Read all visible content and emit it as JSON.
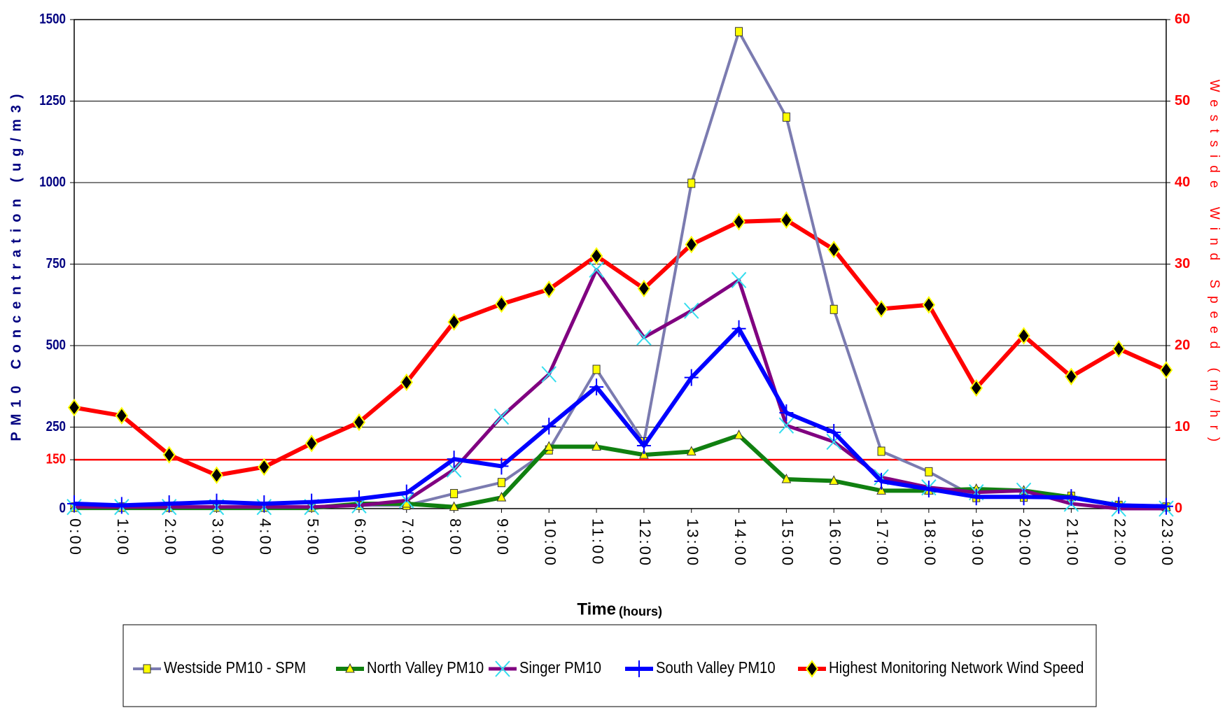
{
  "chart_data": {
    "type": "line",
    "y_label": "PM10 Concentration (ug/m3)",
    "y2_label": "Westside Wind Speed (m/hr)",
    "x_label": "Time",
    "x_label_unit": "(hours)",
    "categories": [
      "0:00",
      "1:00",
      "2:00",
      "3:00",
      "4:00",
      "5:00",
      "6:00",
      "7:00",
      "8:00",
      "9:00",
      "10:00",
      "11:00",
      "12:00",
      "13:00",
      "14:00",
      "15:00",
      "16:00",
      "17:00",
      "18:00",
      "19:00",
      "20:00",
      "21:00",
      "22:00",
      "23:00"
    ],
    "ylim": [
      0,
      1500
    ],
    "yticks": [
      0,
      150,
      250,
      500,
      750,
      1000,
      1250,
      1500
    ],
    "y2lim": [
      0,
      60
    ],
    "y2ticks": [
      0,
      10,
      20,
      30,
      40,
      50,
      60
    ],
    "threshold": 150,
    "threshold_color": "#ff0000",
    "grid": true,
    "series": [
      {
        "name": "Westside  PM10 - SPM",
        "color": "#7b7bb0",
        "marker": "square",
        "marker_color": "#ffff00",
        "width": 4,
        "values": [
          5,
          5,
          5,
          5,
          5,
          5,
          10,
          10,
          46,
          80,
          180,
          427,
          205,
          998,
          1463,
          1201,
          611,
          176,
          113,
          34,
          35,
          38,
          10,
          5
        ]
      },
      {
        "name": "North Valley PM10",
        "color": "#108010",
        "marker": "triangle",
        "marker_color": "#ffff00",
        "width": 6,
        "values": [
          2,
          2,
          2,
          2,
          2,
          2,
          15,
          15,
          5,
          34,
          190,
          190,
          165,
          175,
          225,
          90,
          85,
          55,
          55,
          60,
          55,
          35,
          10,
          5
        ]
      },
      {
        "name": "Singer PM10",
        "color": "#800080",
        "marker": "x",
        "marker_color": "#33ddee",
        "width": 5,
        "values": [
          5,
          5,
          5,
          5,
          5,
          5,
          10,
          25,
          120,
          282,
          412,
          733,
          525,
          607,
          701,
          255,
          205,
          96,
          65,
          50,
          55,
          15,
          0,
          0
        ]
      },
      {
        "name": "South Valley PM10",
        "color": "#0000ff",
        "marker": "plus",
        "marker_color": "#0000ff",
        "width": 6,
        "values": [
          15,
          10,
          15,
          20,
          15,
          20,
          30,
          48,
          152,
          130,
          253,
          373,
          193,
          402,
          552,
          294,
          234,
          84,
          60,
          36,
          36,
          34,
          10,
          7
        ]
      },
      {
        "name": "Highest Monitoring Network Wind Speed",
        "color": "#ff0000",
        "marker": "diamond",
        "marker_color": "#000000",
        "width": 6,
        "axis": "y2",
        "values": [
          12.4,
          11.4,
          6.6,
          4.1,
          5.1,
          8.0,
          10.6,
          15.5,
          22.9,
          25.1,
          26.9,
          31.0,
          27.0,
          32.4,
          35.2,
          35.4,
          31.8,
          24.5,
          25.0,
          14.8,
          21.2,
          16.2,
          19.6,
          17.0
        ]
      }
    ]
  }
}
